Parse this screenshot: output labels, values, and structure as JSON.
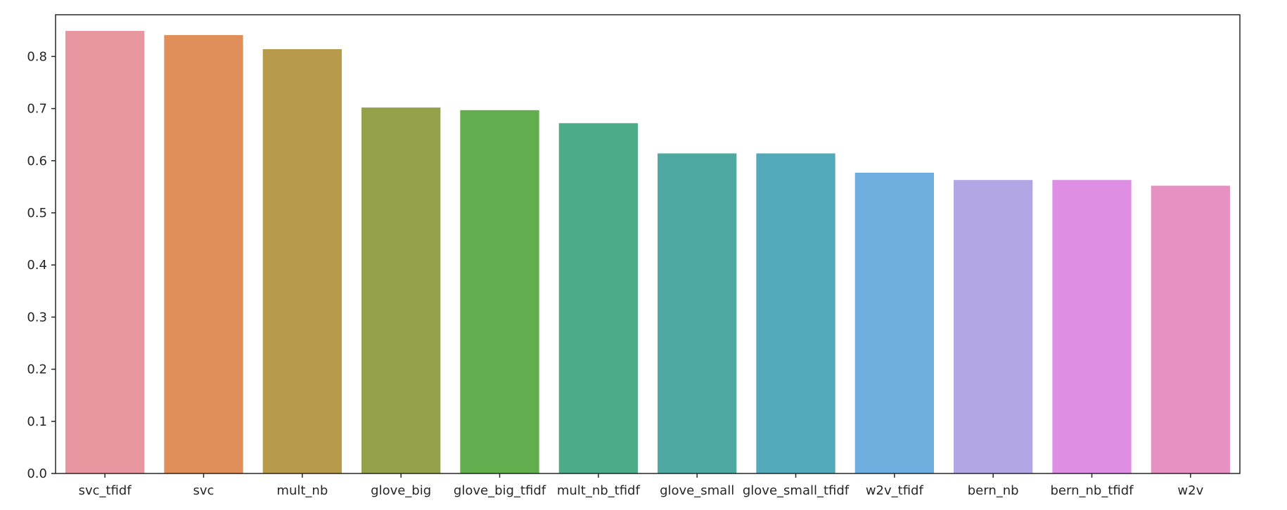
{
  "chart_data": {
    "type": "bar",
    "title": "",
    "xlabel": "",
    "ylabel": "",
    "ylim": [
      0,
      0.88
    ],
    "yticks": [
      0.0,
      0.1,
      0.2,
      0.3,
      0.4,
      0.5,
      0.6,
      0.7,
      0.8
    ],
    "ytick_labels": [
      "0.0",
      "0.1",
      "0.2",
      "0.3",
      "0.4",
      "0.5",
      "0.6",
      "0.7",
      "0.8"
    ],
    "grid": false,
    "categories": [
      "svc_tfidf",
      "svc",
      "mult_nb",
      "glove_big",
      "glove_big_tfidf",
      "mult_nb_tfidf",
      "glove_small",
      "glove_small_tfidf",
      "w2v_tfidf",
      "bern_nb",
      "bern_nb_tfidf",
      "w2v"
    ],
    "values": [
      0.849,
      0.841,
      0.814,
      0.702,
      0.697,
      0.672,
      0.614,
      0.614,
      0.577,
      0.563,
      0.563,
      0.552
    ],
    "colors": [
      "#e8969f",
      "#e08f5a",
      "#b89a4d",
      "#97a04b",
      "#62ad4d",
      "#4cac88",
      "#4fa9a3",
      "#52a9b9",
      "#6eaedf",
      "#b3a6e5",
      "#de8fe4",
      "#e691c1"
    ]
  }
}
